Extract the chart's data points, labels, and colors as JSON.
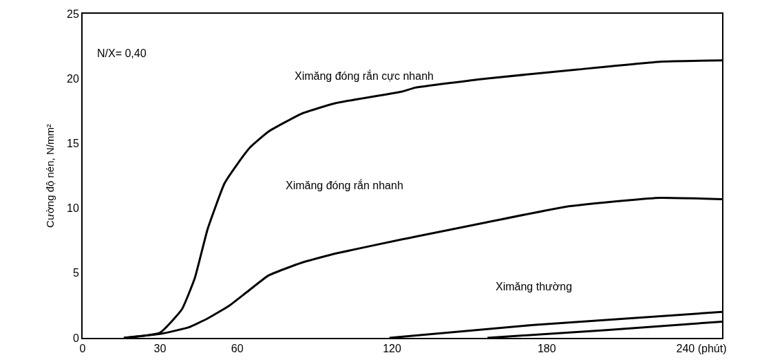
{
  "chart_data": {
    "type": "line",
    "ylabel": "Cường độ nén, N/mm²",
    "xlim": [
      0,
      248
    ],
    "ylim": [
      0,
      25
    ],
    "xticks": [
      0,
      30,
      60,
      120,
      180,
      {
        "value": 240,
        "label": "240 (phút)"
      }
    ],
    "yticks": [
      0,
      5,
      10,
      15,
      20,
      25
    ],
    "marker": "none",
    "line_style": "solid",
    "series": [
      {
        "color": "#000000",
        "x": [
          16,
          30,
          38.5,
          43.5,
          48.5,
          55,
          60,
          65,
          72,
          85,
          98,
          124,
          129,
          156.5,
          192,
          224,
          248
        ],
        "values": [
          0,
          0.4,
          2.2,
          4.6,
          8.4,
          11.9,
          13.4,
          14.7,
          15.9,
          17.3,
          18.1,
          19.0,
          19.3,
          20.0,
          20.7,
          21.3,
          21.4
        ]
      },
      {
        "color": "#000000",
        "x": [
          16,
          30,
          41,
          48.5,
          57,
          63.5,
          72,
          85,
          98,
          124,
          129,
          156.5,
          187,
          211,
          224,
          248
        ],
        "values": [
          0,
          0.3,
          0.8,
          1.5,
          2.5,
          3.5,
          4.8,
          5.8,
          6.5,
          7.6,
          7.8,
          8.9,
          10.1,
          10.6,
          10.8,
          10.7
        ]
      },
      {
        "color": "#000000",
        "x": [
          119,
          175,
          248
        ],
        "values": [
          0,
          1.0,
          2.0
        ]
      },
      {
        "color": "#000000",
        "x": [
          157,
          203,
          248
        ],
        "values": [
          0,
          0.6,
          1.25
        ]
      }
    ],
    "annotations": [
      "N/X= 0,40",
      "Ximăng đóng rắn cực nhanh",
      "Ximăng đóng rắn nhanh",
      "Ximăng thường"
    ]
  }
}
